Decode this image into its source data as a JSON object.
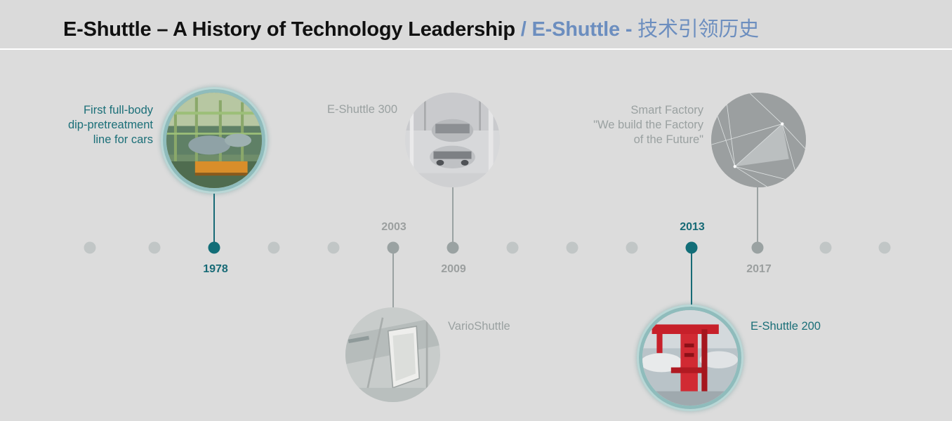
{
  "header": {
    "title_en": "E-Shuttle – A History of Technology Leadership",
    "title_sep": " / ",
    "title_zh_prefix": "E-Shuttle - ",
    "title_zh": "技术引领历史"
  },
  "timeline": {
    "years": {
      "y1978": "1978",
      "y2003": "2003",
      "y2009": "2009",
      "y2013": "2013",
      "y2017": "2017"
    }
  },
  "milestones": {
    "m1978": {
      "line1": "First full-body",
      "line2": "dip-pretreatment",
      "line3": "line for cars"
    },
    "m2003": {
      "label": "VarioShuttle"
    },
    "m2009": {
      "label": "E-Shuttle 300"
    },
    "m2013": {
      "label": "E-Shuttle 200"
    },
    "m2017": {
      "line1": "Smart Factory",
      "line2": "\"We build the Factory",
      "line3": "of the Future\""
    }
  },
  "colors": {
    "teal": "#176a76",
    "grey": "#9aa2a2",
    "dot_light": "#c1c6c6",
    "title_blue": "#6c8ebf",
    "background": "#dcdcdc"
  }
}
